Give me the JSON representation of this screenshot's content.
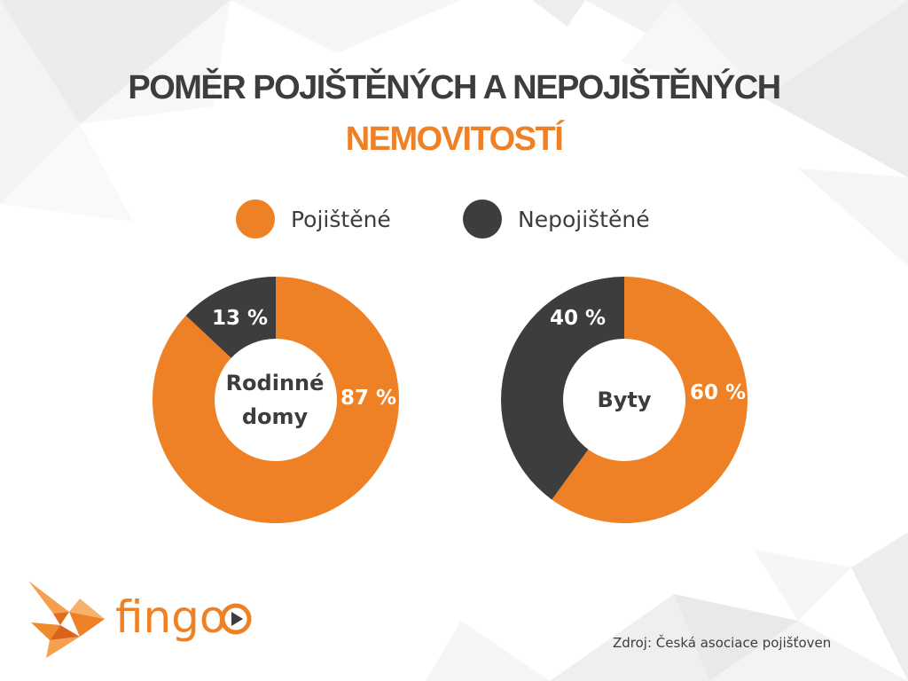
{
  "title": {
    "line1": "POMĚR POJIŠTĚNÝCH A NEPOJIŠTĚNÝCH",
    "line2": "NEMOVITOSTÍ"
  },
  "legend": [
    {
      "label": "Pojištěné",
      "color": "#ee8125"
    },
    {
      "label": "Nepojištěné",
      "color": "#3d3d3d"
    }
  ],
  "chart_data": [
    {
      "type": "pie",
      "center_label": [
        "Rodinné",
        "domy"
      ],
      "slices": [
        {
          "label": "Pojištěné",
          "value": 87,
          "display": "87 %",
          "color": "#ee8125"
        },
        {
          "label": "Nepojištěné",
          "value": 13,
          "display": "13 %",
          "color": "#3d3d3d"
        }
      ]
    },
    {
      "type": "pie",
      "center_label": [
        "Byty"
      ],
      "slices": [
        {
          "label": "Pojištěné",
          "value": 60,
          "display": "60 %",
          "color": "#ee8125"
        },
        {
          "label": "Nepojištěné",
          "value": 40,
          "display": "40 %",
          "color": "#3d3d3d"
        }
      ]
    }
  ],
  "logo": {
    "text": "fingo",
    "icon": "fish-logo-icon"
  },
  "source": "Zdroj: Česká asociace pojišťoven"
}
